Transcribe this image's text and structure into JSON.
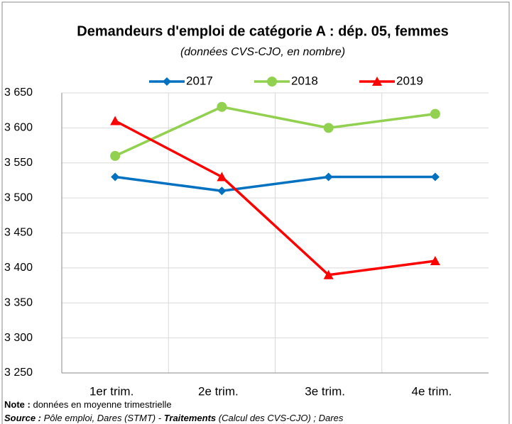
{
  "chart_data": {
    "type": "line",
    "title": "Demandeurs d'emploi de catégorie A : dép. 05, femmes",
    "subtitle": "(données CVS-CJO, en nombre)",
    "categories": [
      "1er trim.",
      "2e trim.",
      "3e trim.",
      "4e trim."
    ],
    "series": [
      {
        "name": "2017",
        "color": "#0070c0",
        "marker": "diamond",
        "values": [
          3530,
          3510,
          3530,
          3530
        ]
      },
      {
        "name": "2018",
        "color": "#92d050",
        "marker": "circle",
        "values": [
          3560,
          3630,
          3600,
          3620
        ]
      },
      {
        "name": "2019",
        "color": "#ff0000",
        "marker": "triangle",
        "values": [
          3610,
          3530,
          3390,
          3410
        ]
      }
    ],
    "ylim": [
      3250,
      3650
    ],
    "yticks": [
      {
        "value": 3250,
        "label": "3 250"
      },
      {
        "value": 3300,
        "label": "3 300"
      },
      {
        "value": 3350,
        "label": "3 350"
      },
      {
        "value": 3400,
        "label": "3 400"
      },
      {
        "value": 3450,
        "label": "3 450"
      },
      {
        "value": 3500,
        "label": "3 500"
      },
      {
        "value": 3550,
        "label": "3 550"
      },
      {
        "value": 3600,
        "label": "3 600"
      },
      {
        "value": 3650,
        "label": "3 650"
      }
    ],
    "grid": true,
    "legend": "top",
    "note_label": "Note :",
    "note": "données en moyenne trimestrielle",
    "source_label": "Source :",
    "source": "Pôle emploi, Dares (STMT) -",
    "treatments_label": "Traitements",
    "treatments": "(Calcul des CVS-CJO) ; Dares"
  }
}
